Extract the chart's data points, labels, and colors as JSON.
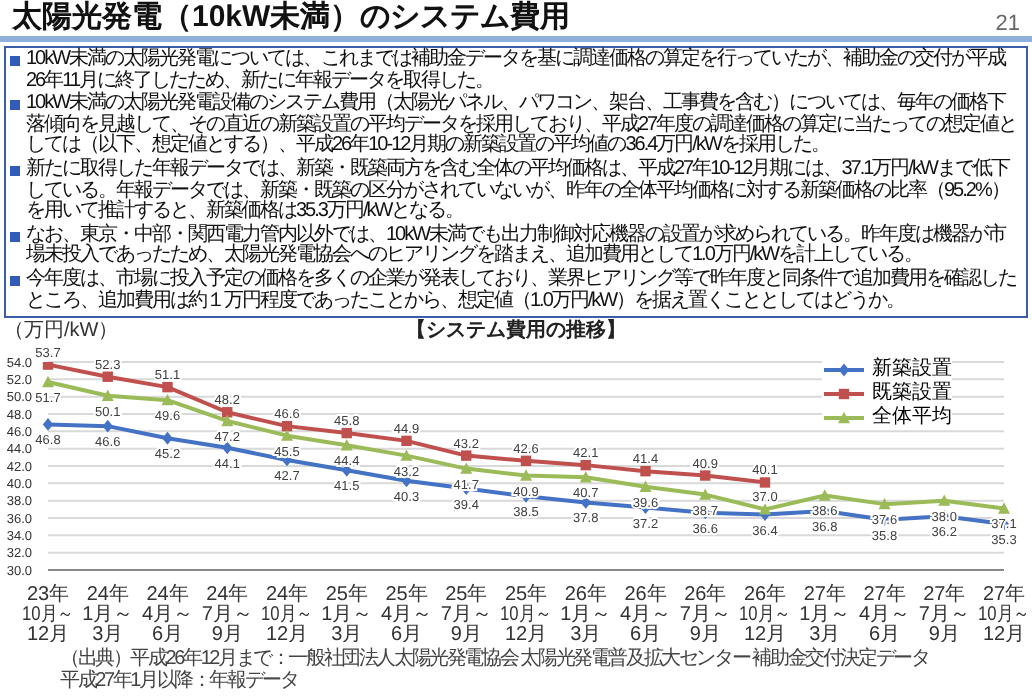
{
  "chart_data": {
    "type": "line",
    "title": "太陽光発電（10kW未満）のシステム費用",
    "subtitle": "【システム費用の推移】",
    "ylabel": "（万円/kW）",
    "annotations": [
      "21",
      "10kW未満の太陽光発電については、これまでは補助金データを基に調達価格の算定を行っていたが、補助金の交付が平成26年11月に終了したため、新たに年報データを取得した。",
      "10kW未満の太陽光発電設備のシステム費用（太陽光パネル、パワコン、架台、工事費を含む）については、毎年の価格下落傾向を見越して、その直近の新築設置の平均データを採用しており、平成27年度の調達価格の算定に当たっての想定値としては（以下、想定値とする）、平成26年10-12月期の新築設置の平均値の36.4万円/kWを採用した。",
      "新たに取得した年報データでは、新築・既築両方を含む全体の平均価格は、平成27年10-12月期には、37.1万円/kWまで低下している。年報データでは、新築・既築の区分がされていないが、昨年の全体平均価格に対する新築価格の比率（95.2%）を用いて推計すると、新築価格は35.3万円/kWとなる。",
      "なお、東京・中部・関西電力管内以外では、10kW未満でも出力制御対応機器の設置が求められている。昨年度は機器が市場未投入であったため、太陽光発電協会へのヒアリングを踏まえ、追加費用として1.0万円/kWを計上している。",
      "今年度は、市場に投入予定の価格を多くの企業が発表しており、業界ヒアリング等で昨年度と同条件で追加費用を確認したところ、追加費用は約１万円程度であったことから、想定値（1.0万円/kW）を据え置くこととしてはどうか。",
      "（出典）平成26年12月まで：一般社団法人太陽光発電協会 太陽光発電普及拡大センター 補助金交付決定データ",
      "平成27年1月以降：年報データ"
    ],
    "categories": [
      "23年\n10月～\n12月",
      "24年\n1月～\n3月",
      "24年\n4月～\n6月",
      "24年\n7月～\n9月",
      "24年\n10月～\n12月",
      "25年\n1月～\n3月",
      "25年\n4月～\n6月",
      "25年\n7月～\n9月",
      "25年\n10月～\n12月",
      "26年\n1月～\n3月",
      "26年\n4月～\n6月",
      "26年\n7月～\n9月",
      "26年\n10月～\n12月",
      "27年\n1月～\n3月",
      "27年\n4月～\n6月",
      "27年\n7月～\n9月",
      "27年\n10月～\n12月"
    ],
    "series": [
      {
        "name": "新築設置",
        "color": "#4472c4",
        "marker": "diamond",
        "values": [
          46.8,
          46.6,
          45.2,
          44.1,
          42.7,
          41.5,
          40.3,
          39.4,
          38.5,
          37.8,
          37.2,
          36.6,
          36.4,
          36.8,
          35.8,
          36.2,
          35.3
        ],
        "value_labels": [
          "46.8",
          "46.6",
          "45.2",
          "44.1",
          "42.7",
          "41.5",
          "40.3",
          "39.4",
          "38.5",
          "37.8",
          "37.2",
          "36.6",
          "36.4",
          "36.8",
          "35.8",
          "36.2",
          "35.3"
        ]
      },
      {
        "name": "既築設置",
        "color": "#c0504d",
        "marker": "square",
        "values": [
          53.7,
          52.3,
          51.1,
          48.2,
          46.6,
          45.8,
          44.9,
          43.2,
          42.6,
          42.1,
          41.4,
          40.9,
          40.1,
          null,
          null,
          null,
          null
        ],
        "value_labels": [
          "53.7",
          "52.3",
          "51.1",
          "48.2",
          "46.6",
          "45.8",
          "44.9",
          "43.2",
          "42.6",
          "42.1",
          "41.4",
          "40.9",
          "40.1",
          null,
          null,
          null,
          null
        ]
      },
      {
        "name": "全体平均",
        "color": "#9bbb59",
        "marker": "triangle",
        "values": [
          51.7,
          50.1,
          49.6,
          47.2,
          45.5,
          44.4,
          43.2,
          41.7,
          40.9,
          40.7,
          39.6,
          38.7,
          37.0,
          38.6,
          37.6,
          38.0,
          37.1
        ],
        "value_labels": [
          "51.7",
          "50.1",
          "49.6",
          "47.2",
          "45.5",
          "44.4",
          "43.2",
          "41.7",
          "40.9",
          "40.7",
          "39.6",
          "38.7",
          "37.0",
          "38.6",
          "37.6",
          "38.0",
          "37.1"
        ]
      }
    ],
    "ylim": [
      30,
      54
    ],
    "yticks": [
      {
        "value": 30,
        "label": "30.0"
      },
      {
        "value": 32,
        "label": "32.0"
      },
      {
        "value": 34,
        "label": "34.0"
      },
      {
        "value": 36,
        "label": "36.0"
      },
      {
        "value": 38,
        "label": "38.0"
      },
      {
        "value": 40,
        "label": "40.0"
      },
      {
        "value": 42,
        "label": "42.0"
      },
      {
        "value": 44,
        "label": "44.0"
      },
      {
        "value": 46,
        "label": "46.0"
      },
      {
        "value": 48,
        "label": "48.0"
      },
      {
        "value": 50,
        "label": "50.0"
      },
      {
        "value": 52,
        "label": "52.0"
      },
      {
        "value": 54,
        "label": "54.0"
      }
    ],
    "grid": "y",
    "legend": "top right",
    "line_style": "solid"
  }
}
